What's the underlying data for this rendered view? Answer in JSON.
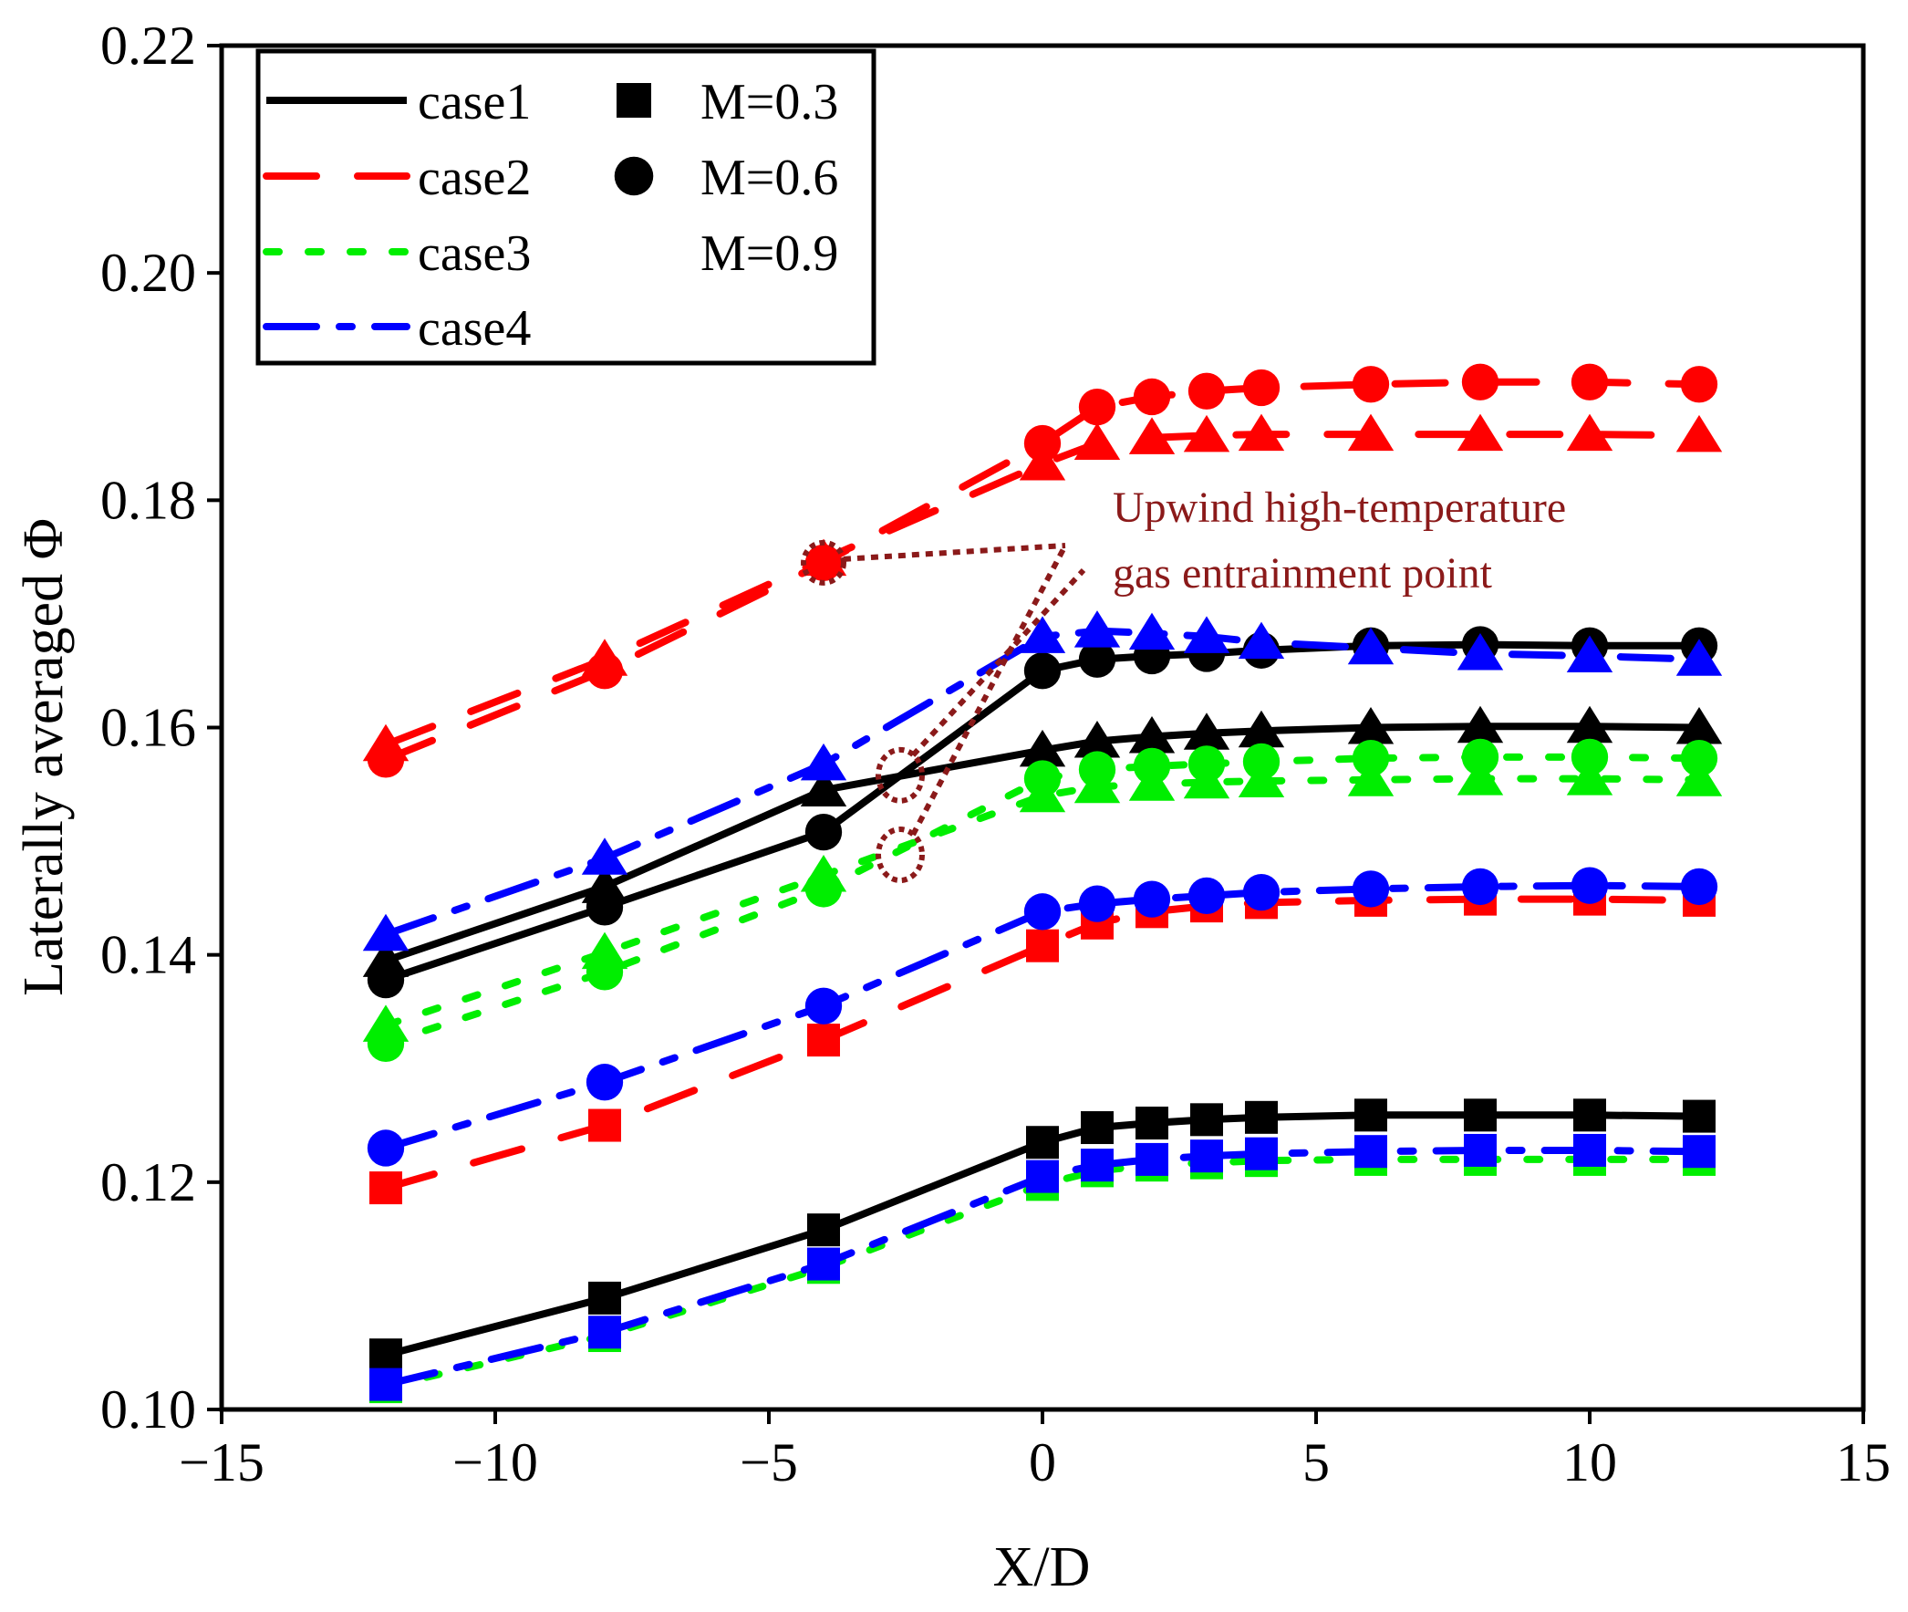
{
  "chart_data": {
    "type": "line",
    "title": "",
    "xlabel": "X/D",
    "ylabel": "Laterally averaged Φ",
    "xlim": [
      -15,
      15
    ],
    "ylim": [
      0.1,
      0.22
    ],
    "xticks": [
      -15,
      -10,
      -5,
      0,
      5,
      10,
      15
    ],
    "xtick_labels": [
      "−15",
      "−10",
      "−5",
      "0",
      "5",
      "10",
      "15"
    ],
    "yticks": [
      0.1,
      0.12,
      0.14,
      0.16,
      0.18,
      0.2,
      0.22
    ],
    "ytick_labels": [
      "0.10",
      "0.12",
      "0.14",
      "0.16",
      "0.18",
      "0.20",
      "0.22"
    ],
    "x": [
      -12,
      -8,
      -4,
      0,
      1,
      2,
      3,
      4,
      6,
      8,
      10,
      12
    ],
    "colors": {
      "case1": "#000000",
      "case2": "#ff0000",
      "case3": "#00ee00",
      "case4": "#0000ff",
      "annotation": "#8b1a1a"
    },
    "series": [
      {
        "name": "case1",
        "case": "case1",
        "M": "M=0.3",
        "marker": "square",
        "values": [
          0.1048,
          0.1098,
          0.1158,
          0.1235,
          0.1248,
          0.1252,
          0.1255,
          0.1257,
          0.1259,
          0.1259,
          0.1259,
          0.1258
        ]
      },
      {
        "name": "case1",
        "case": "case1",
        "M": "M=0.6",
        "marker": "circle",
        "values": [
          0.1378,
          0.1442,
          0.1508,
          0.165,
          0.166,
          0.1663,
          0.1665,
          0.1668,
          0.1672,
          0.1673,
          0.1672,
          0.1672
        ]
      },
      {
        "name": "case1",
        "case": "case1",
        "M": "M=0.9",
        "marker": "triangle",
        "values": [
          0.1395,
          0.146,
          0.1545,
          0.158,
          0.1588,
          0.1592,
          0.1595,
          0.1597,
          0.16,
          0.1601,
          0.1601,
          0.16
        ]
      },
      {
        "name": "case2",
        "case": "case2",
        "M": "M=0.3",
        "marker": "square",
        "values": [
          0.1195,
          0.125,
          0.1325,
          0.1408,
          0.1428,
          0.1438,
          0.1443,
          0.1446,
          0.1448,
          0.1449,
          0.1449,
          0.1448
        ]
      },
      {
        "name": "case2",
        "case": "case2",
        "M": "M=0.6",
        "marker": "circle",
        "values": [
          0.1572,
          0.165,
          0.1745,
          0.185,
          0.1882,
          0.1891,
          0.1896,
          0.1899,
          0.1902,
          0.1904,
          0.1904,
          0.1902
        ]
      },
      {
        "name": "case2",
        "case": "case2",
        "M": "M=0.9",
        "marker": "triangle",
        "values": [
          0.1585,
          0.166,
          0.1748,
          0.1832,
          0.185,
          0.1855,
          0.1857,
          0.1858,
          0.1858,
          0.1858,
          0.1858,
          0.1857
        ]
      },
      {
        "name": "case3",
        "case": "case3",
        "M": "M=0.3",
        "marker": "square",
        "values": [
          0.102,
          0.1065,
          0.1125,
          0.1198,
          0.121,
          0.1215,
          0.1217,
          0.1219,
          0.122,
          0.122,
          0.122,
          0.122
        ]
      },
      {
        "name": "case3",
        "case": "case3",
        "M": "M=0.6",
        "marker": "circle",
        "values": [
          0.1322,
          0.1385,
          0.1458,
          0.1555,
          0.1563,
          0.1566,
          0.1568,
          0.157,
          0.1573,
          0.1574,
          0.1574,
          0.1573
        ]
      },
      {
        "name": "case3",
        "case": "case3",
        "M": "M=0.9",
        "marker": "triangle",
        "values": [
          0.1338,
          0.1402,
          0.147,
          0.154,
          0.1548,
          0.155,
          0.1552,
          0.1553,
          0.1554,
          0.1555,
          0.1555,
          0.1554
        ]
      },
      {
        "name": "case4",
        "case": "case4",
        "M": "M=0.3",
        "marker": "square",
        "values": [
          0.1022,
          0.1068,
          0.1128,
          0.1205,
          0.1215,
          0.122,
          0.1223,
          0.1225,
          0.1227,
          0.1228,
          0.1228,
          0.1227
        ]
      },
      {
        "name": "case4",
        "case": "case4",
        "M": "M=0.6",
        "marker": "circle",
        "values": [
          0.123,
          0.1288,
          0.1355,
          0.1438,
          0.1445,
          0.1449,
          0.1452,
          0.1455,
          0.1458,
          0.146,
          0.1461,
          0.146
        ]
      },
      {
        "name": "case4",
        "case": "case4",
        "M": "M=0.9",
        "marker": "triangle",
        "values": [
          0.1418,
          0.1485,
          0.1568,
          0.168,
          0.1685,
          0.1683,
          0.168,
          0.1675,
          0.167,
          0.1665,
          0.1663,
          0.166
        ]
      }
    ],
    "legend": {
      "position": "top-left",
      "lines": [
        "case1",
        "case2",
        "case3",
        "case4"
      ],
      "markers": [
        {
          "label": "M=0.3",
          "marker": "square"
        },
        {
          "label": "M=0.6",
          "marker": "circle"
        },
        {
          "label": "M=0.9",
          "marker": "triangle"
        }
      ]
    },
    "annotation": {
      "lines": [
        "Upwind high-temperature",
        "gas entrainment point"
      ],
      "points": [
        {
          "x": -4,
          "y": 0.1745
        },
        {
          "x": -2.6,
          "y": 0.1558
        },
        {
          "x": -2.6,
          "y": 0.1488
        }
      ]
    }
  }
}
